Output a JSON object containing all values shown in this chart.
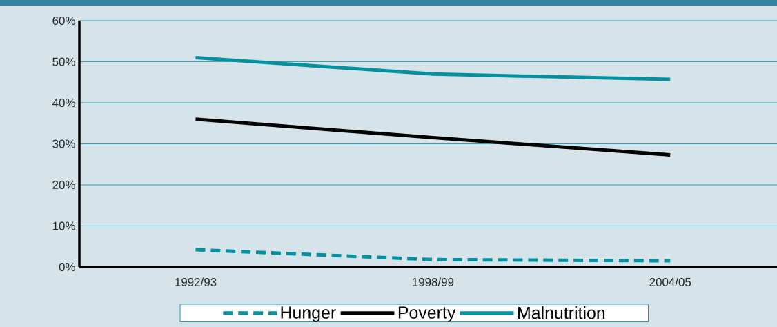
{
  "chart_data": {
    "type": "line",
    "categories": [
      "1992/93",
      "1998/99",
      "2004/05"
    ],
    "series": [
      {
        "name": "Hunger",
        "color": "#00909f",
        "values": [
          4.2,
          1.8,
          1.5
        ],
        "line_style": "dashed"
      },
      {
        "name": "Poverty",
        "color": "#000000",
        "values": [
          36,
          31.5,
          27.3
        ]
      },
      {
        "name": "Malnutrition",
        "color": "#00909f",
        "values": [
          51,
          47,
          45.7
        ]
      }
    ],
    "ylim": [
      0,
      60
    ],
    "yticks": [
      {
        "value": 0,
        "label": "0%"
      },
      {
        "value": 10,
        "label": "10%"
      },
      {
        "value": 20,
        "label": "20%"
      },
      {
        "value": 30,
        "label": "30%"
      },
      {
        "value": 40,
        "label": "40%"
      },
      {
        "value": 50,
        "label": "50%"
      },
      {
        "value": 60,
        "label": "60%"
      }
    ],
    "grid": "y",
    "legend": "bottom",
    "marker": "none"
  }
}
